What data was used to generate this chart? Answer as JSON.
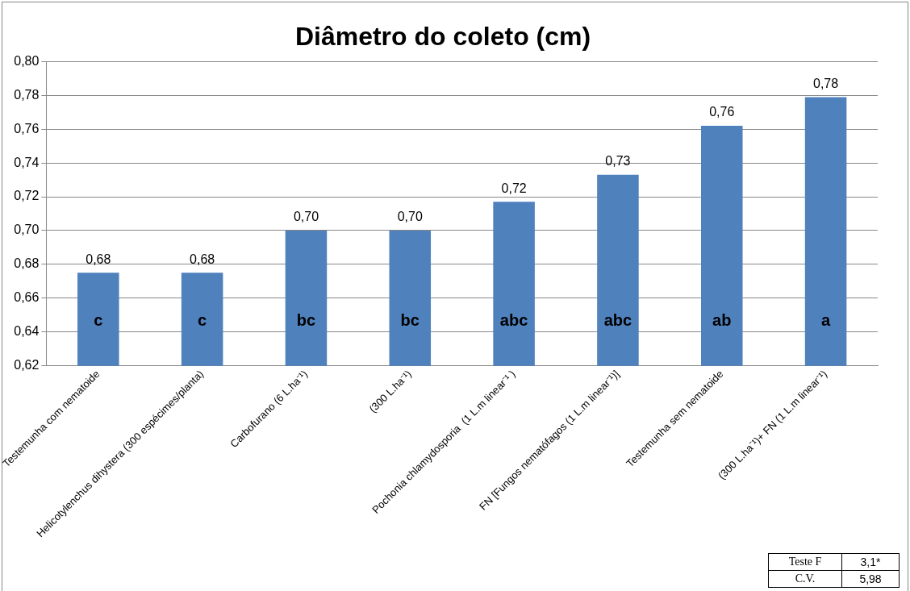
{
  "chart_data": {
    "type": "bar",
    "title": "Diâmetro do coleto (cm)",
    "categories": [
      "Testemunha com nematoide",
      "Helicotylenchus dihystera (300 espécimes/planta)",
      "Carbofurano (6 L.ha⁻¹)",
      "(300 L.ha⁻¹)",
      "Pochonia chlamydosporia  (1 L.m linear⁻¹ )",
      "FN [Fungos nematófagos (1 L.m linear⁻¹)]",
      "Testemunha sem nematoide",
      "(300 L.ha⁻¹)+ FN (1 L.m linear⁻¹)"
    ],
    "values": [
      0.675,
      0.675,
      0.7,
      0.7,
      0.717,
      0.733,
      0.762,
      0.779
    ],
    "value_labels": [
      "0,68",
      "0,68",
      "0,70",
      "0,70",
      "0,72",
      "0,73",
      "0,76",
      "0,78"
    ],
    "color": "#4f81bd",
    "ylim": [
      0.62,
      0.8
    ],
    "yticks": [
      {
        "value": 0.62,
        "label": "0,62"
      },
      {
        "value": 0.64,
        "label": "0,64"
      },
      {
        "value": 0.66,
        "label": "0,66"
      },
      {
        "value": 0.68,
        "label": "0,68"
      },
      {
        "value": 0.7,
        "label": "0,70"
      },
      {
        "value": 0.72,
        "label": "0,72"
      },
      {
        "value": 0.74,
        "label": "0,74"
      },
      {
        "value": 0.76,
        "label": "0,76"
      },
      {
        "value": 0.78,
        "label": "0,78"
      },
      {
        "value": 0.8,
        "label": "0,80"
      }
    ],
    "grid": "y",
    "annotations": [
      "c",
      "c",
      "bc",
      "bc",
      "abc",
      "abc",
      "ab",
      "a",
      "Teste F",
      "3,1*",
      "C.V.",
      "5,98"
    ]
  }
}
